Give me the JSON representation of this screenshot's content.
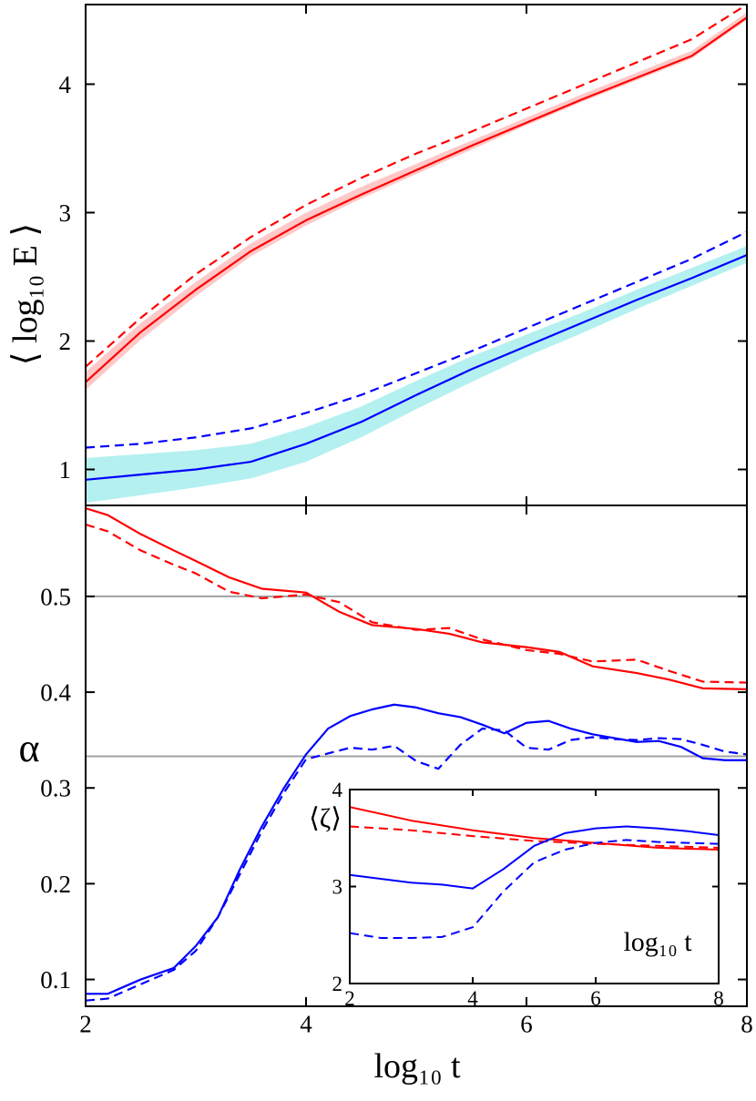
{
  "chart_data": [
    {
      "panel": "top",
      "type": "line",
      "xlabel": "log₁₀ t",
      "ylabel": "⟨ log₁₀ E ⟩",
      "xlim": [
        2,
        8
      ],
      "ylim": [
        0.72,
        4.62
      ],
      "xticks": [
        "2",
        "4",
        "6",
        "8"
      ],
      "yticks": [
        {
          "v": 1,
          "label": "1"
        },
        {
          "v": 2,
          "label": "2"
        },
        {
          "v": 3,
          "label": "3"
        },
        {
          "v": 4,
          "label": "4"
        }
      ],
      "series": [
        {
          "name": "red-solid",
          "color": "#ff0000",
          "dash": false,
          "x": [
            2,
            2.5,
            3,
            3.5,
            4,
            4.5,
            5,
            5.5,
            6,
            6.5,
            7,
            7.5,
            8
          ],
          "y": [
            1.68,
            2.07,
            2.4,
            2.7,
            2.94,
            3.14,
            3.33,
            3.52,
            3.7,
            3.88,
            4.05,
            4.22,
            4.52
          ]
        },
        {
          "name": "red-dashed",
          "color": "#ff0000",
          "dash": true,
          "x": [
            2,
            2.5,
            3,
            3.5,
            4,
            4.5,
            5,
            5.5,
            6,
            6.5,
            7,
            7.5,
            8
          ],
          "y": [
            1.8,
            2.18,
            2.52,
            2.81,
            3.06,
            3.27,
            3.46,
            3.63,
            3.81,
            3.99,
            4.17,
            4.35,
            4.62
          ]
        },
        {
          "name": "blue-solid",
          "color": "#0000ff",
          "dash": false,
          "x": [
            2,
            2.5,
            3,
            3.5,
            4,
            4.5,
            5,
            5.5,
            6,
            6.5,
            7,
            7.5,
            8
          ],
          "y": [
            0.92,
            0.96,
            1.0,
            1.06,
            1.2,
            1.37,
            1.58,
            1.78,
            1.96,
            2.14,
            2.32,
            2.49,
            2.67
          ]
        },
        {
          "name": "blue-dashed",
          "color": "#0000ff",
          "dash": true,
          "x": [
            2,
            2.5,
            3,
            3.5,
            4,
            4.5,
            5,
            5.5,
            6,
            6.5,
            7,
            7.5,
            8
          ],
          "y": [
            1.17,
            1.2,
            1.25,
            1.32,
            1.44,
            1.58,
            1.75,
            1.92,
            2.1,
            2.28,
            2.46,
            2.64,
            2.85
          ]
        }
      ],
      "bands": [
        {
          "name": "red-band",
          "color": "#ffc8c8",
          "x": [
            2,
            2.5,
            3,
            3.5,
            4,
            4.5,
            5,
            5.5,
            6,
            6.5,
            7,
            7.5,
            8
          ],
          "lo": [
            1.62,
            2.01,
            2.35,
            2.66,
            2.9,
            3.11,
            3.3,
            3.49,
            3.68,
            3.86,
            4.03,
            4.2,
            4.5
          ],
          "hi": [
            1.76,
            2.14,
            2.46,
            2.76,
            3.0,
            3.2,
            3.38,
            3.56,
            3.74,
            3.92,
            4.09,
            4.26,
            4.56
          ]
        },
        {
          "name": "cyan-band",
          "color": "#b4f0f0",
          "x": [
            2,
            2.5,
            3,
            3.5,
            4,
            4.5,
            5,
            5.5,
            6,
            6.5,
            7,
            7.5,
            8
          ],
          "lo": [
            0.74,
            0.8,
            0.86,
            0.93,
            1.06,
            1.25,
            1.47,
            1.68,
            1.88,
            2.06,
            2.25,
            2.43,
            2.61
          ],
          "hi": [
            1.09,
            1.12,
            1.15,
            1.2,
            1.33,
            1.49,
            1.69,
            1.88,
            2.05,
            2.22,
            2.4,
            2.57,
            2.74
          ]
        }
      ]
    },
    {
      "panel": "bottom",
      "type": "line",
      "xlabel": "log₁₀ t",
      "ylabel": "α",
      "xlim": [
        2,
        8
      ],
      "ylim": [
        0.072,
        0.595
      ],
      "xticks": [
        "2",
        "4",
        "6",
        "8"
      ],
      "yticks": [
        {
          "v": 0.1,
          "label": "0.1"
        },
        {
          "v": 0.2,
          "label": "0.2"
        },
        {
          "v": 0.3,
          "label": "0.3"
        },
        {
          "v": 0.4,
          "label": "0.4"
        },
        {
          "v": 0.5,
          "label": "0.5"
        }
      ],
      "reference_lines": [
        0.5,
        0.333
      ],
      "series": [
        {
          "name": "red-solid",
          "color": "#ff0000",
          "dash": false,
          "x": [
            2,
            2.2,
            2.5,
            2.8,
            3.0,
            3.3,
            3.6,
            4.0,
            4.3,
            4.6,
            5.0,
            5.3,
            5.6,
            6.0,
            6.3,
            6.6,
            7.0,
            7.3,
            7.6,
            8.0
          ],
          "y": [
            0.592,
            0.585,
            0.565,
            0.548,
            0.537,
            0.52,
            0.508,
            0.504,
            0.484,
            0.47,
            0.466,
            0.461,
            0.452,
            0.447,
            0.442,
            0.427,
            0.42,
            0.413,
            0.404,
            0.403
          ]
        },
        {
          "name": "red-dashed",
          "color": "#ff0000",
          "dash": true,
          "x": [
            2,
            2.2,
            2.5,
            2.8,
            3.0,
            3.3,
            3.6,
            4.0,
            4.3,
            4.6,
            5.0,
            5.3,
            5.6,
            6.0,
            6.3,
            6.6,
            7.0,
            7.3,
            7.6,
            8.0
          ],
          "y": [
            0.575,
            0.568,
            0.548,
            0.533,
            0.524,
            0.505,
            0.498,
            0.502,
            0.494,
            0.473,
            0.465,
            0.467,
            0.455,
            0.444,
            0.44,
            0.432,
            0.434,
            0.422,
            0.411,
            0.41
          ]
        },
        {
          "name": "blue-solid",
          "color": "#0000ff",
          "dash": false,
          "x": [
            2,
            2.2,
            2.5,
            2.8,
            3.0,
            3.2,
            3.4,
            3.6,
            3.8,
            4.0,
            4.2,
            4.4,
            4.6,
            4.8,
            5.0,
            5.2,
            5.4,
            5.6,
            5.8,
            6.0,
            6.2,
            6.4,
            6.6,
            6.8,
            7.0,
            7.2,
            7.4,
            7.6,
            7.8,
            8.0
          ],
          "y": [
            0.085,
            0.085,
            0.1,
            0.112,
            0.135,
            0.165,
            0.215,
            0.26,
            0.3,
            0.335,
            0.362,
            0.375,
            0.382,
            0.387,
            0.384,
            0.378,
            0.374,
            0.366,
            0.357,
            0.368,
            0.37,
            0.362,
            0.356,
            0.352,
            0.348,
            0.349,
            0.343,
            0.331,
            0.329,
            0.329
          ]
        },
        {
          "name": "blue-dashed",
          "color": "#0000ff",
          "dash": true,
          "x": [
            2,
            2.2,
            2.5,
            2.8,
            3.0,
            3.2,
            3.4,
            3.6,
            3.8,
            4.0,
            4.2,
            4.4,
            4.6,
            4.8,
            5.0,
            5.2,
            5.4,
            5.6,
            5.8,
            6.0,
            6.2,
            6.4,
            6.6,
            6.8,
            7.0,
            7.2,
            7.4,
            7.6,
            7.8,
            8.0
          ],
          "y": [
            0.078,
            0.08,
            0.095,
            0.11,
            0.13,
            0.165,
            0.21,
            0.255,
            0.295,
            0.33,
            0.336,
            0.342,
            0.34,
            0.344,
            0.328,
            0.32,
            0.345,
            0.362,
            0.36,
            0.342,
            0.34,
            0.35,
            0.353,
            0.351,
            0.35,
            0.352,
            0.351,
            0.345,
            0.338,
            0.335
          ]
        }
      ]
    },
    {
      "panel": "inset",
      "type": "line",
      "xlabel": "log₁₀ t",
      "ylabel": "⟨ζ⟩",
      "xlim": [
        2,
        8
      ],
      "ylim": [
        2,
        4
      ],
      "xticks": [
        "2",
        "4",
        "6",
        "8"
      ],
      "yticks": [
        {
          "v": 2,
          "label": "2"
        },
        {
          "v": 3,
          "label": "3"
        },
        {
          "v": 4,
          "label": "4"
        }
      ],
      "series": [
        {
          "name": "red-solid",
          "color": "#ff0000",
          "dash": false,
          "x": [
            2,
            3,
            4,
            5,
            6,
            7,
            8
          ],
          "y": [
            3.82,
            3.68,
            3.58,
            3.5,
            3.45,
            3.4,
            3.38
          ]
        },
        {
          "name": "red-dashed",
          "color": "#ff0000",
          "dash": true,
          "x": [
            2,
            3,
            4,
            5,
            6,
            7,
            8
          ],
          "y": [
            3.62,
            3.58,
            3.52,
            3.47,
            3.44,
            3.42,
            3.4
          ]
        },
        {
          "name": "blue-solid",
          "color": "#0000ff",
          "dash": false,
          "x": [
            2,
            2.5,
            3,
            3.5,
            4,
            4.5,
            5,
            5.5,
            6,
            6.5,
            7,
            7.5,
            8
          ],
          "y": [
            3.12,
            3.08,
            3.04,
            3.02,
            2.98,
            3.18,
            3.42,
            3.55,
            3.6,
            3.62,
            3.6,
            3.57,
            3.53
          ]
        },
        {
          "name": "blue-dashed",
          "color": "#0000ff",
          "dash": true,
          "x": [
            2,
            2.5,
            3,
            3.5,
            4,
            4.5,
            5,
            5.5,
            6,
            6.5,
            7,
            7.5,
            8
          ],
          "y": [
            2.52,
            2.47,
            2.47,
            2.48,
            2.58,
            2.95,
            3.25,
            3.38,
            3.45,
            3.48,
            3.46,
            3.45,
            3.44
          ]
        }
      ]
    }
  ]
}
